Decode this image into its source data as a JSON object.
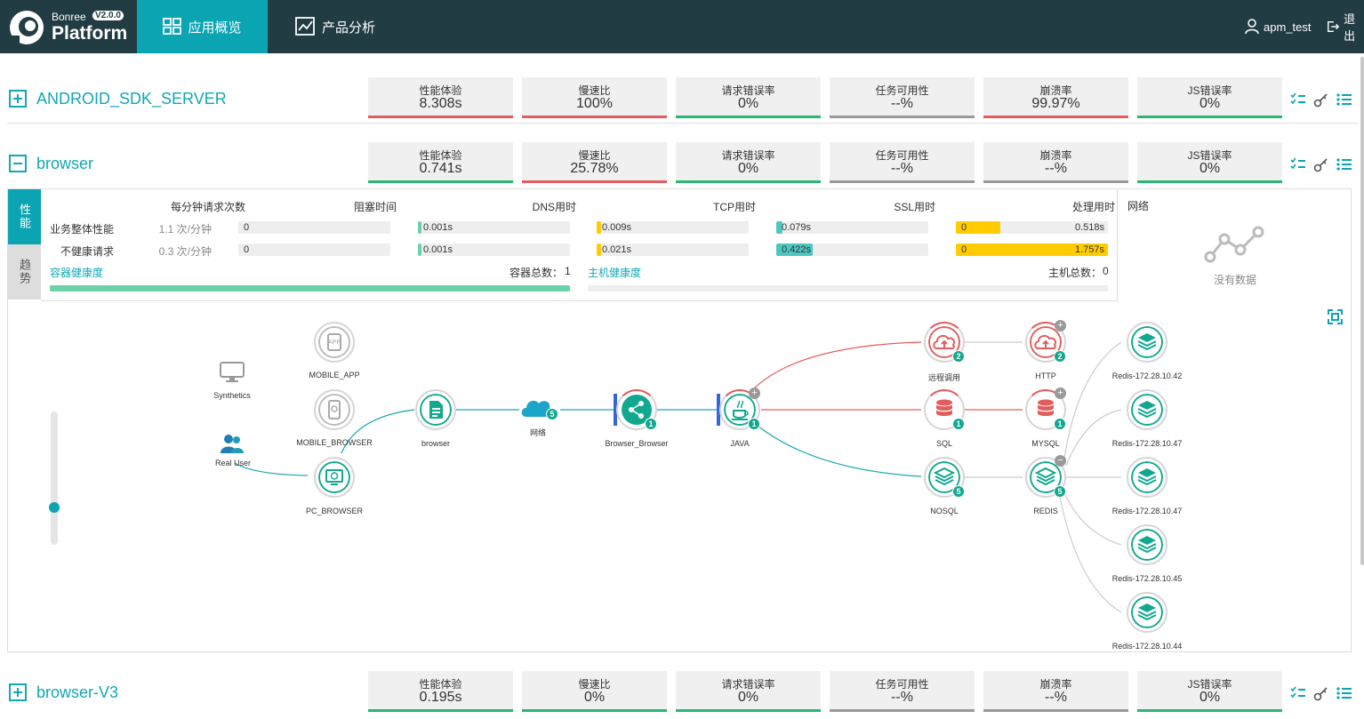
{
  "header": {
    "brand_small": "Bonree",
    "version": "V2.0.0",
    "brand_big": "Platform",
    "nav": [
      {
        "label": "应用概览",
        "icon": "grid-icon",
        "active": true
      },
      {
        "label": "产品分析",
        "icon": "line-chart-icon",
        "active": false
      }
    ],
    "user": "apm_test",
    "logout": "退出"
  },
  "colors": {
    "accent": "#0aa4b3",
    "good": "#2bb673",
    "bad": "#e25d5d",
    "neutral": "#999999",
    "warn": "#ffcc00"
  },
  "apps": [
    {
      "name": "ANDROID_SDK_SERVER",
      "expanded": false,
      "metrics": [
        {
          "label": "性能体验",
          "value": "8.308s",
          "status": "bad"
        },
        {
          "label": "慢速比",
          "value": "100%",
          "status": "bad"
        },
        {
          "label": "请求错误率",
          "value": "0%",
          "status": "good"
        },
        {
          "label": "任务可用性",
          "value": "--%",
          "status": "neutral"
        },
        {
          "label": "崩溃率",
          "value": "99.97%",
          "status": "bad"
        },
        {
          "label": "JS错误率",
          "value": "0%",
          "status": "good"
        }
      ]
    },
    {
      "name": "browser",
      "expanded": true,
      "metrics": [
        {
          "label": "性能体验",
          "value": "0.741s",
          "status": "good"
        },
        {
          "label": "慢速比",
          "value": "25.78%",
          "status": "bad"
        },
        {
          "label": "请求错误率",
          "value": "0%",
          "status": "good"
        },
        {
          "label": "任务可用性",
          "value": "--%",
          "status": "neutral"
        },
        {
          "label": "崩溃率",
          "value": "--%",
          "status": "neutral"
        },
        {
          "label": "JS错误率",
          "value": "0%",
          "status": "good"
        }
      ]
    },
    {
      "name": "browser-V3",
      "expanded": false,
      "metrics": [
        {
          "label": "性能体验",
          "value": "0.195s",
          "status": "good"
        },
        {
          "label": "慢速比",
          "value": "0%",
          "status": "good"
        },
        {
          "label": "请求错误率",
          "value": "0%",
          "status": "good"
        },
        {
          "label": "任务可用性",
          "value": "--%",
          "status": "neutral"
        },
        {
          "label": "崩溃率",
          "value": "--%",
          "status": "neutral"
        },
        {
          "label": "JS错误率",
          "value": "0%",
          "status": "good"
        }
      ]
    }
  ],
  "panel": {
    "tabs": [
      "性能",
      "趋势"
    ],
    "headers": {
      "rpm": "每分钟请求次数",
      "block": "阻塞时间",
      "dns": "DNS用时",
      "tcp": "TCP用时",
      "ssl": "SSL用时",
      "proc": "处理用时"
    },
    "rows": [
      {
        "label": "业务整体性能",
        "rpm": "1.1 次/分钟",
        "block": "0",
        "dns": "0.001s",
        "tcp": "0.009s",
        "ssl": "0.079s",
        "proc_left": "0",
        "proc_right": "0.518s",
        "fills": {
          "block": 0,
          "dns": 0.02,
          "tcp": 0.03,
          "ssl": 0.04,
          "proc": 0.29
        }
      },
      {
        "label": "不健康请求",
        "rpm": "0.3 次/分钟",
        "block": "0",
        "dns": "0.001s",
        "tcp": "0.021s",
        "ssl": "0.422s",
        "proc_left": "0",
        "proc_right": "1.757s",
        "fills": {
          "block": 0,
          "dns": 0.02,
          "tcp": 0.03,
          "ssl": 0.24,
          "proc": 1.0
        }
      }
    ],
    "container_health": "容器健康度",
    "container_total": "容器总数：",
    "container_count": "1",
    "host_health": "主机健康度",
    "host_total": "主机总数：",
    "host_count": "0",
    "network_title": "网络",
    "no_data": "没有数据"
  },
  "topology": {
    "nodes": [
      {
        "id": "mobile_app",
        "label": "MOBILE_APP",
        "icon": "app-icon"
      },
      {
        "id": "synthetics",
        "label": "Synthetics",
        "icon": "monitor-icon"
      },
      {
        "id": "mobile_browser",
        "label": "MOBILE_BROWSER",
        "icon": "mobile-browser-icon"
      },
      {
        "id": "real_user",
        "label": "Real User",
        "icon": "users-icon"
      },
      {
        "id": "pc_browser",
        "label": "PC_BROWSER",
        "icon": "pc-browser-icon"
      },
      {
        "id": "browser",
        "label": "browser",
        "icon": "document-icon"
      },
      {
        "id": "network",
        "label": "网络",
        "icon": "cloud-icon",
        "badge": "5"
      },
      {
        "id": "bb",
        "label": "Browser_Browser",
        "icon": "share-icon",
        "badge": "1"
      },
      {
        "id": "java",
        "label": "JAVA",
        "icon": "java-icon",
        "badge": "1"
      },
      {
        "id": "remote",
        "label": "远程调用",
        "icon": "cloud-upload-icon",
        "badge": "2"
      },
      {
        "id": "sql",
        "label": "SQL",
        "icon": "database-icon",
        "badge": "1"
      },
      {
        "id": "nosql",
        "label": "NOSQL",
        "icon": "layers-icon",
        "badge": "5"
      },
      {
        "id": "http",
        "label": "HTTP",
        "icon": "cloud-upload-icon",
        "badge": "2"
      },
      {
        "id": "mysql",
        "label": "MYSQL",
        "icon": "database-icon",
        "badge": "1"
      },
      {
        "id": "redis",
        "label": "REDIS",
        "icon": "layers-icon",
        "badge": "5"
      },
      {
        "id": "r42",
        "label": "Redis-172.28.10.42",
        "icon": "layers-icon"
      },
      {
        "id": "r47a",
        "label": "Redis-172.28.10.47",
        "icon": "layers-icon"
      },
      {
        "id": "r47b",
        "label": "Redis-172.28.10.47",
        "icon": "layers-icon"
      },
      {
        "id": "r45",
        "label": "Redis-172.28.10.45",
        "icon": "layers-icon"
      },
      {
        "id": "r44",
        "label": "Redis-172.28.10.44",
        "icon": "layers-icon"
      }
    ]
  }
}
